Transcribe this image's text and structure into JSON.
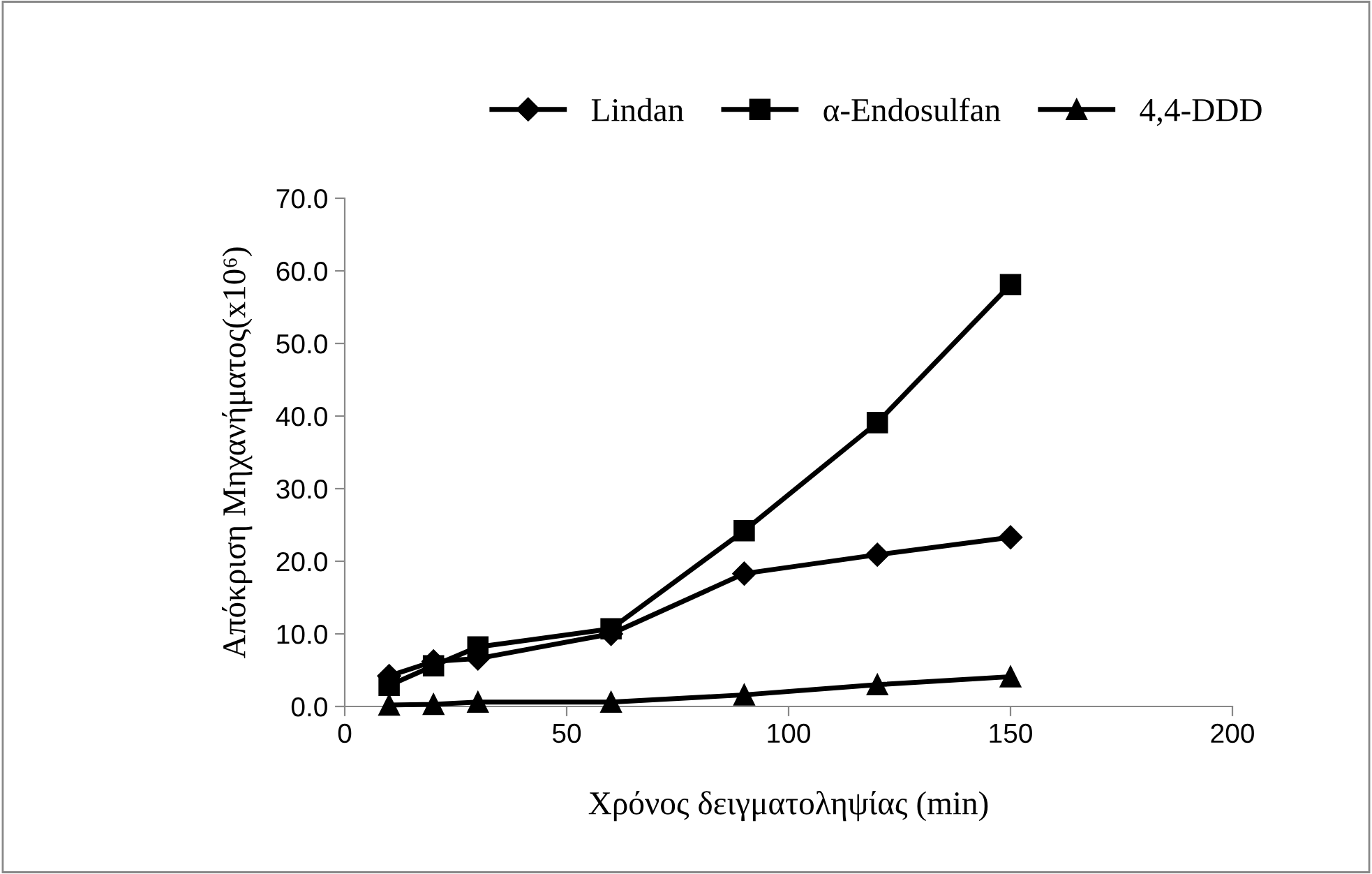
{
  "chart_data": {
    "type": "line",
    "xlabel": "Χρόνος δειγματοληψίας (min)",
    "ylabel": "Απόκριση Μηχανήματος(x10⁶)",
    "x": [
      10,
      20,
      30,
      60,
      90,
      120,
      150
    ],
    "series": [
      {
        "name": "Lindan",
        "color": "#000000",
        "marker": "diamond",
        "values": [
          4.2,
          6.2,
          6.6,
          10.0,
          18.3,
          20.9,
          23.3
        ]
      },
      {
        "name": "α-Endosulfan",
        "color": "#000000",
        "marker": "square",
        "values": [
          2.9,
          5.6,
          8.2,
          10.7,
          24.2,
          39.1,
          58.1
        ]
      },
      {
        "name": "4,4-DDD",
        "color": "#000000",
        "marker": "triangle",
        "values": [
          0.2,
          0.3,
          0.6,
          0.6,
          1.6,
          3.0,
          4.1
        ]
      }
    ],
    "xlim": [
      0,
      200
    ],
    "xticks": [
      0,
      50,
      100,
      150,
      200
    ],
    "ylim": [
      0,
      70
    ],
    "yticks": [
      {
        "value": 0,
        "label": "0.0"
      },
      {
        "value": 10,
        "label": "10.0"
      },
      {
        "value": 20,
        "label": "20.0"
      },
      {
        "value": 30,
        "label": "30.0"
      },
      {
        "value": 40,
        "label": "40.0"
      },
      {
        "value": 50,
        "label": "50.0"
      },
      {
        "value": 60,
        "label": "60.0"
      },
      {
        "value": 70,
        "label": "70.0"
      }
    ],
    "grid": false,
    "legend": "top",
    "line_style": "solid"
  }
}
